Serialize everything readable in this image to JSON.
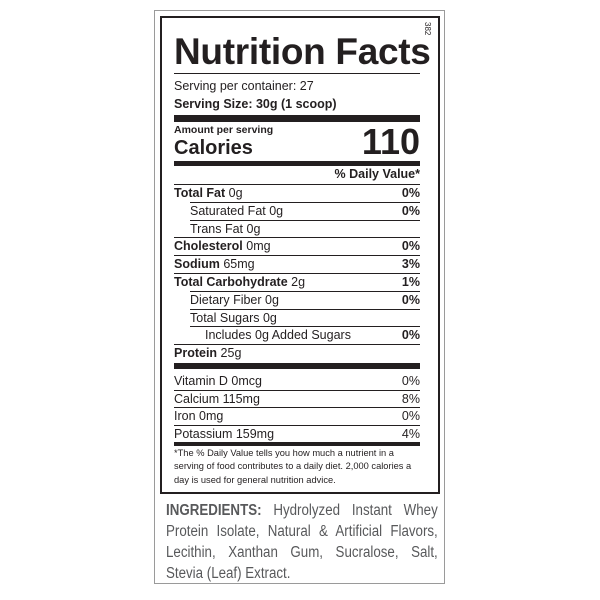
{
  "label_code": "382",
  "title": "Nutrition Facts",
  "servings_per_container": "Serving per container: 27",
  "serving_size": "Serving Size: 30g (1 scoop)",
  "amount_per_serving": "Amount per serving",
  "calories_label": "Calories",
  "calories_value": "110",
  "dv_header": "% Daily Value*",
  "nutrients": [
    {
      "name": "Total Fat",
      "amount": " 0g",
      "dv": "0%",
      "bold": true,
      "indent": 0
    },
    {
      "name": "Saturated Fat",
      "amount": " 0g",
      "dv": "0%",
      "bold": false,
      "indent": 1
    },
    {
      "name": "Trans Fat",
      "amount": " 0g",
      "dv": "",
      "bold": false,
      "indent": 1
    },
    {
      "name": "Cholesterol",
      "amount": " 0mg",
      "dv": "0%",
      "bold": true,
      "indent": 0
    },
    {
      "name": "Sodium",
      "amount": " 65mg",
      "dv": "3%",
      "bold": true,
      "indent": 0
    },
    {
      "name": "Total Carbohydrate",
      "amount": " 2g",
      "dv": "1%",
      "bold": true,
      "indent": 0
    },
    {
      "name": "Dietary Fiber",
      "amount": " 0g",
      "dv": "0%",
      "bold": false,
      "indent": 1
    },
    {
      "name": "Total Sugars",
      "amount": " 0g",
      "dv": "",
      "bold": false,
      "indent": 1
    },
    {
      "name": "Includes 0g Added Sugars",
      "amount": "",
      "dv": "0%",
      "bold": false,
      "indent": 2
    },
    {
      "name": "Protein",
      "amount": " 25g",
      "dv": "",
      "bold": true,
      "indent": 0
    }
  ],
  "vitamins": [
    {
      "name": "Vitamin D 0mcg",
      "dv": "0%"
    },
    {
      "name": "Calcium  115mg",
      "dv": "8%"
    },
    {
      "name": "Iron 0mg",
      "dv": "0%"
    },
    {
      "name": "Potassium 159mg",
      "dv": "4%"
    }
  ],
  "footnote": "*The % Daily Value tells you how much a nutrient in a serving of food contributes to a daily diet. 2,000 calories a day is used for general nutrition advice.",
  "ingredients_label": "INGREDIENTS:",
  "ingredients": " Hydrolyzed Instant Whey Protein Isolate, Natural & Artificial Flavors, Lecithin, Xanthan Gum, Sucralose, Salt, Stevia (Leaf) Extract."
}
